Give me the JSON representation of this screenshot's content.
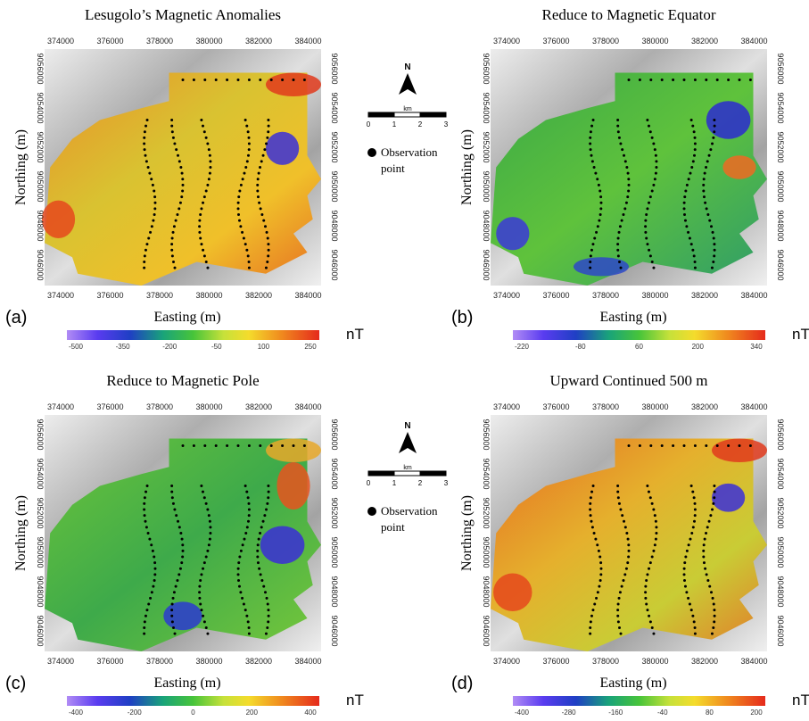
{
  "panels": [
    {
      "letter": "(a)",
      "title": "Lesugolo’s Magnetic  Anomalies",
      "x_axis_label": "Easting (m)",
      "y_axis_label": "Northing (m)",
      "easting_ticks": [
        "374000",
        "376000",
        "378000",
        "380000",
        "382000",
        "384000"
      ],
      "northing_ticks": [
        "9056000",
        "9054000",
        "9052000",
        "9050000",
        "9048000",
        "9046000"
      ],
      "colorbar_labels": [
        "-500",
        "-350",
        "-200",
        "-50",
        "100",
        "250"
      ],
      "colorbar_unit": "nT"
    },
    {
      "letter": "(b)",
      "title": "Reduce to Magnetic  Equator",
      "x_axis_label": "Easting (m)",
      "y_axis_label": "Northing (m)",
      "easting_ticks": [
        "374000",
        "376000",
        "378000",
        "380000",
        "382000",
        "384000"
      ],
      "northing_ticks": [
        "9056000",
        "9054000",
        "9052000",
        "9050000",
        "9048000",
        "9046000"
      ],
      "colorbar_labels": [
        "-220",
        "-80",
        "60",
        "200",
        "340"
      ],
      "colorbar_unit": "nT"
    },
    {
      "letter": "(c)",
      "title": "Reduce to Magnetic  Pole",
      "x_axis_label": "Easting (m)",
      "y_axis_label": "Northing (m)",
      "easting_ticks": [
        "374000",
        "376000",
        "378000",
        "380000",
        "382000",
        "384000"
      ],
      "northing_ticks": [
        "9056000",
        "9054000",
        "9052000",
        "9050000",
        "9048000",
        "9046000"
      ],
      "colorbar_labels": [
        "-400",
        "-200",
        "0",
        "200",
        "400"
      ],
      "colorbar_unit": "nT"
    },
    {
      "letter": "(d)",
      "title": "Upward Continued 500 m",
      "x_axis_label": "Easting (m)",
      "y_axis_label": "Northing (m)",
      "easting_ticks": [
        "374000",
        "376000",
        "378000",
        "380000",
        "382000",
        "384000"
      ],
      "northing_ticks": [
        "9056000",
        "9054000",
        "9052000",
        "9050000",
        "9048000",
        "9046000"
      ],
      "colorbar_labels": [
        "-400",
        "-280",
        "-160",
        "-40",
        "80",
        "200"
      ],
      "colorbar_unit": "nT"
    }
  ],
  "legends": [
    {
      "north": "N",
      "scale_unit": "km",
      "scale_ticks": [
        "0",
        "1",
        "2",
        "3"
      ],
      "point_label_1": "Observation",
      "point_label_2": "point"
    },
    {
      "north": "N",
      "scale_unit": "km",
      "scale_ticks": [
        "0",
        "1",
        "2",
        "3"
      ],
      "point_label_1": "Observation",
      "point_label_2": "point"
    }
  ]
}
